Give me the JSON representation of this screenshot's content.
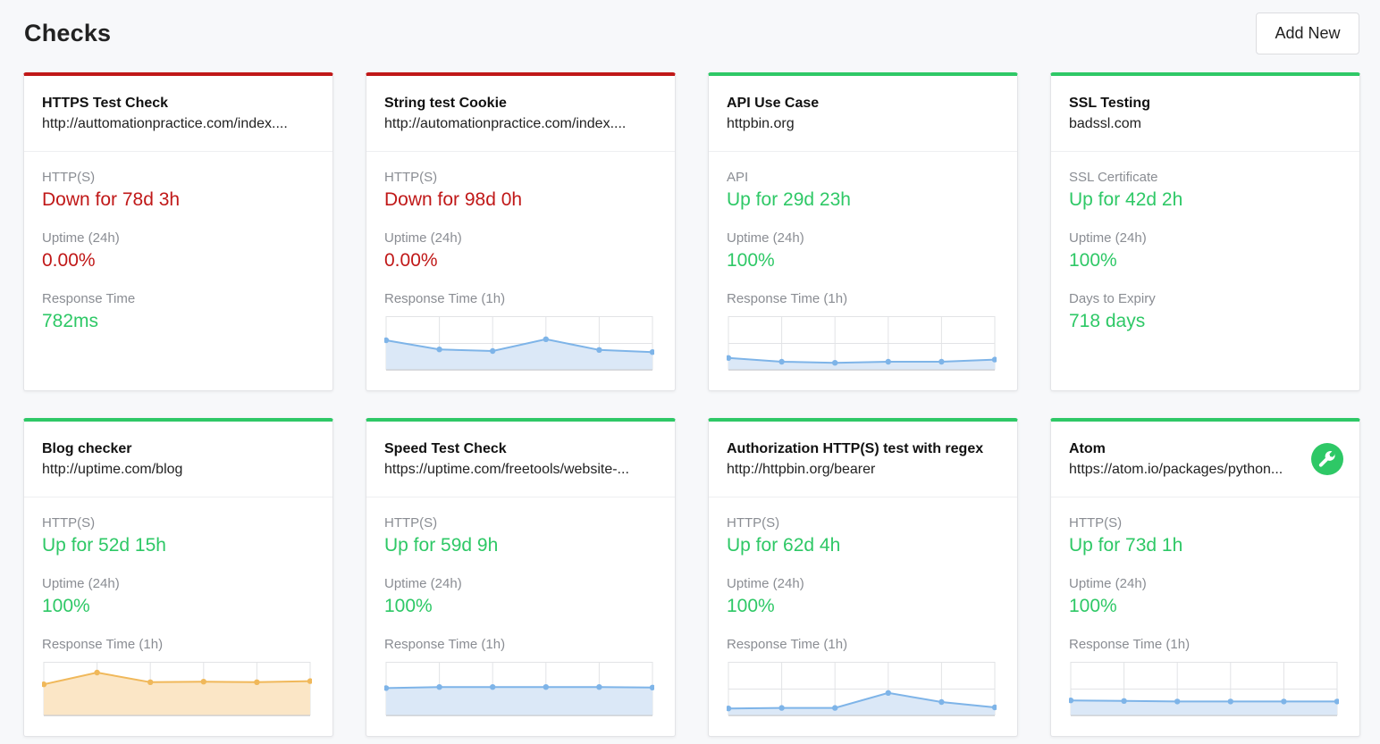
{
  "header": {
    "title": "Checks",
    "add_label": "Add New"
  },
  "colors": {
    "up": "#2ec866",
    "down": "#c01818",
    "chart_blue": "#7eb4e8",
    "chart_orange": "#f0b85a"
  },
  "checks": [
    {
      "name": "HTTPS Test Check",
      "url": "http://auttomationpractice.com/index....",
      "status": "down",
      "type_label": "HTTP(S)",
      "status_text": "Down for 78d 3h",
      "status_color": "red",
      "uptime_label": "Uptime (24h)",
      "uptime": "0.00%",
      "uptime_color": "red",
      "metric_label": "Response Time",
      "metric": "782ms",
      "has_chart": false,
      "icon": ""
    },
    {
      "name": "String test Cookie",
      "url": "http://automationpractice.com/index....",
      "status": "down",
      "type_label": "HTTP(S)",
      "status_text": "Down for 98d 0h",
      "status_color": "red",
      "uptime_label": "Uptime (24h)",
      "uptime": "0.00%",
      "uptime_color": "red",
      "metric_label": "Response Time (1h)",
      "metric": "",
      "has_chart": true,
      "chart_color": "blue",
      "chart_values": [
        0.55,
        0.38,
        0.35,
        0.57,
        0.37,
        0.33
      ],
      "icon": ""
    },
    {
      "name": "API Use Case",
      "url": "httpbin.org",
      "status": "up",
      "type_label": "API",
      "status_text": "Up for 29d 23h",
      "status_color": "green",
      "uptime_label": "Uptime (24h)",
      "uptime": "100%",
      "uptime_color": "green",
      "metric_label": "Response Time (1h)",
      "metric": "",
      "has_chart": true,
      "chart_color": "blue",
      "chart_values": [
        0.22,
        0.15,
        0.13,
        0.15,
        0.15,
        0.19
      ],
      "icon": ""
    },
    {
      "name": "SSL Testing",
      "url": "badssl.com",
      "status": "up",
      "type_label": "SSL Certificate",
      "status_text": "Up for 42d 2h",
      "status_color": "green",
      "uptime_label": "Uptime (24h)",
      "uptime": "100%",
      "uptime_color": "green",
      "metric_label": "Days to Expiry",
      "metric": "718 days",
      "has_chart": false,
      "icon": ""
    },
    {
      "name": "Blog checker",
      "url": "http://uptime.com/blog",
      "status": "up",
      "type_label": "HTTP(S)",
      "status_text": "Up for 52d 15h",
      "status_color": "green",
      "uptime_label": "Uptime (24h)",
      "uptime": "100%",
      "uptime_color": "green",
      "metric_label": "Response Time (1h)",
      "metric": "",
      "has_chart": true,
      "chart_color": "orange",
      "chart_values": [
        0.58,
        0.8,
        0.62,
        0.63,
        0.62,
        0.64
      ],
      "icon": ""
    },
    {
      "name": "Speed Test Check",
      "url": "https://uptime.com/freetools/website-...",
      "status": "up",
      "type_label": "HTTP(S)",
      "status_text": "Up for 59d 9h",
      "status_color": "green",
      "uptime_label": "Uptime (24h)",
      "uptime": "100%",
      "uptime_color": "green",
      "metric_label": "Response Time (1h)",
      "metric": "",
      "has_chart": true,
      "chart_color": "blue",
      "chart_values": [
        0.51,
        0.53,
        0.53,
        0.53,
        0.53,
        0.52
      ],
      "icon": ""
    },
    {
      "name": "Authorization HTTP(S) test with regex",
      "url": "http://httpbin.org/bearer",
      "status": "up",
      "type_label": "HTTP(S)",
      "status_text": "Up for 62d 4h",
      "status_color": "green",
      "uptime_label": "Uptime (24h)",
      "uptime": "100%",
      "uptime_color": "green",
      "metric_label": "Response Time (1h)",
      "metric": "",
      "has_chart": true,
      "chart_color": "blue",
      "chart_values": [
        0.13,
        0.14,
        0.14,
        0.42,
        0.25,
        0.15
      ],
      "icon": ""
    },
    {
      "name": "Atom",
      "url": "https://atom.io/packages/python...",
      "status": "up",
      "type_label": "HTTP(S)",
      "status_text": "Up for 73d 1h",
      "status_color": "green",
      "uptime_label": "Uptime (24h)",
      "uptime": "100%",
      "uptime_color": "green",
      "metric_label": "Response Time (1h)",
      "metric": "",
      "has_chart": true,
      "chart_color": "blue",
      "chart_values": [
        0.28,
        0.27,
        0.26,
        0.26,
        0.26,
        0.26
      ],
      "icon": "wrench-icon"
    }
  ]
}
